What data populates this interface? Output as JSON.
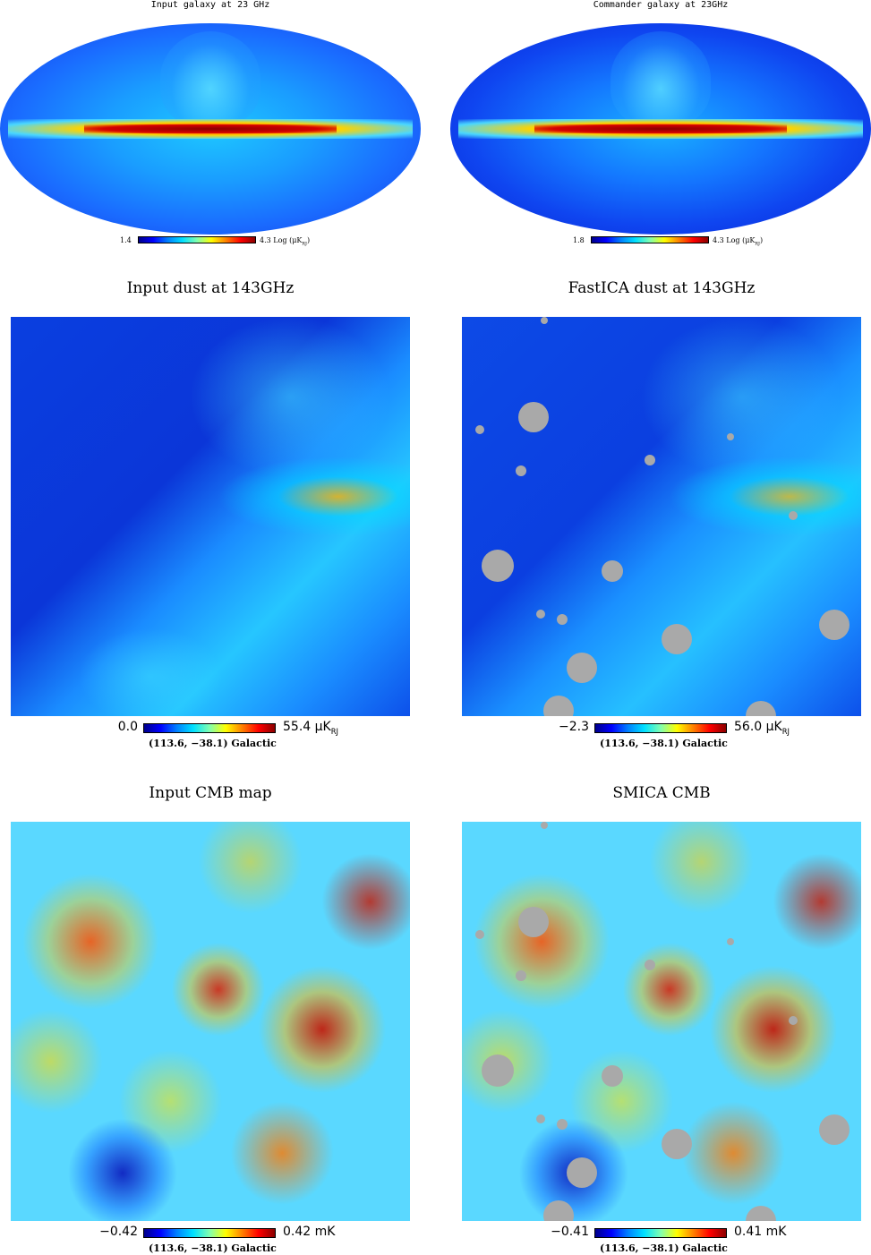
{
  "panels": {
    "galaxy_input": {
      "title": "Input galaxy at 23 GHz",
      "cmin": "1.4",
      "cmax": "4.3",
      "unit_prefix": "Log (",
      "unit": "μK",
      "unit_sub": "RJ",
      "unit_suffix": ")"
    },
    "galaxy_commander": {
      "title": "Commander galaxy at 23GHz",
      "cmin": "1.8",
      "cmax": "4.3",
      "unit_prefix": "Log (",
      "unit": "μK",
      "unit_sub": "RJ",
      "unit_suffix": ")"
    },
    "dust_input": {
      "title": "Input dust at 143GHz",
      "cmin": "0.0",
      "cmax": "55.4",
      "unit": "μK",
      "unit_sub": "RJ",
      "coords": "(113.6, −38.1) Galactic"
    },
    "dust_fastica": {
      "title": "FastICA dust at 143GHz",
      "cmin": "−2.3",
      "cmax": "56.0",
      "unit": "μK",
      "unit_sub": "RJ",
      "coords": "(113.6, −38.1) Galactic"
    },
    "cmb_input": {
      "title": "Input CMB map",
      "cmin": "−0.42",
      "cmax": "0.42 mK",
      "coords": "(113.6, −38.1) Galactic"
    },
    "cmb_smica": {
      "title": "SMICA CMB",
      "cmin": "−0.41",
      "cmax": "0.41 mK",
      "coords": "(113.6, −38.1) Galactic"
    }
  },
  "colors": {
    "mask_gray": "#a9a9a9",
    "background": "#ffffff"
  }
}
